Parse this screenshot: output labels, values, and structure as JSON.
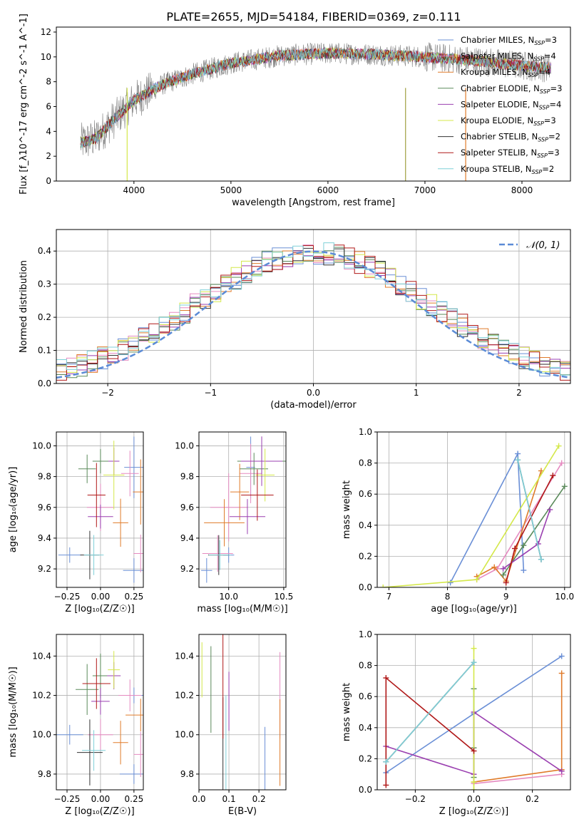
{
  "figure_title": "PLATE=2655, MJD=54184, FIBERID=0369, z=0.111",
  "colors": {
    "Chabrier MILES": "#6a8fd6",
    "Salpeter MILES": "#e58ac0",
    "Kroupa MILES": "#e07b2a",
    "Chabrier ELODIE": "#5a8a5a",
    "Salpeter ELODIE": "#9a3fb0",
    "Kroupa ELODIE": "#d4e84a",
    "Chabrier STELIB": "#333333",
    "Salpeter STELIB": "#b01818",
    "Kroupa STELIB": "#7fd0d8",
    "data": "#808080",
    "normal": "#5b8bd6"
  },
  "chart_data": [
    {
      "id": "spectrum",
      "type": "line",
      "xlabel": "wavelength [Angstrom, rest frame]",
      "ylabel": "Flux [f_λ10^-17 erg cm^-2 s^-1 A^-1]",
      "xlim": [
        3200,
        8500
      ],
      "ylim": [
        0,
        12.4
      ],
      "xticks": [
        4000,
        5000,
        6000,
        7000,
        8000
      ],
      "yticks": [
        0,
        2,
        4,
        6,
        8,
        10,
        12
      ],
      "legend_position": "lower right",
      "legend": [
        {
          "label": "Chabrier MILES, N",
          "sub": "SSP",
          "suffix": "=3"
        },
        {
          "label": "Salpeter MILES, N",
          "sub": "SSP",
          "suffix": "=4"
        },
        {
          "label": "Kroupa MILES, N",
          "sub": "SSP",
          "suffix": "=4"
        },
        {
          "label": "Chabrier ELODIE, N",
          "sub": "SSP",
          "suffix": "=3"
        },
        {
          "label": "Salpeter ELODIE, N",
          "sub": "SSP",
          "suffix": "=4"
        },
        {
          "label": "Kroupa ELODIE, N",
          "sub": "SSP",
          "suffix": "=3"
        },
        {
          "label": "Chabrier STELIB, N",
          "sub": "SSP",
          "suffix": "=2"
        },
        {
          "label": "Salpeter STELIB, N",
          "sub": "SSP",
          "suffix": "=3"
        },
        {
          "label": "Kroupa STELIB, N",
          "sub": "SSP",
          "suffix": "=2"
        }
      ],
      "data_trend": {
        "x": [
          3450,
          3600,
          3800,
          4000,
          4300,
          4600,
          5000,
          5500,
          6000,
          6500,
          7000,
          7500,
          8000,
          8300
        ],
        "y": [
          3.1,
          3.4,
          5.0,
          6.5,
          7.8,
          8.6,
          9.5,
          10.1,
          10.3,
          10.2,
          10.0,
          9.7,
          9.3,
          9.1
        ]
      },
      "data_range": [
        3450,
        8300
      ],
      "dropouts": [
        3930,
        6800,
        7420
      ]
    },
    {
      "id": "residuals",
      "type": "histogram",
      "xlabel": "(data-model)/error",
      "ylabel": "Normed distribution",
      "xlim": [
        -2.5,
        2.5
      ],
      "ylim": [
        0,
        0.465
      ],
      "xticks": [
        -2,
        -1,
        0,
        1,
        2
      ],
      "yticks": [
        0,
        0.1,
        0.2,
        0.3,
        0.4
      ],
      "legend_position": "upper right",
      "legend": "𝒩(0, 1)",
      "bin_width": 0.1,
      "bins_start": -2.5
    },
    {
      "id": "age-Z",
      "type": "errorbar",
      "xlabel": "Z [log₁₀(Z/Z☉)]",
      "ylabel": "age  [log₁₀(age/yr)]",
      "xlim": [
        -0.33,
        0.32
      ],
      "ylim": [
        9.08,
        10.09
      ],
      "xticks": [
        -0.25,
        0.0,
        0.25
      ],
      "yticks": [
        9.2,
        9.4,
        9.6,
        9.8,
        10.0
      ],
      "xtick_labels": [
        "−0.25",
        "0.00",
        "0.25"
      ]
    },
    {
      "id": "age-mass",
      "type": "errorbar",
      "xlabel": "mass [log₁₀(M/M☉)]",
      "ylabel": "",
      "xlim": [
        9.73,
        10.52
      ],
      "ylim": [
        9.08,
        10.09
      ],
      "xticks": [
        10.0,
        10.5
      ],
      "yticks": [
        9.2,
        9.4,
        9.6,
        9.8,
        10.0
      ]
    },
    {
      "id": "weight-age",
      "type": "line",
      "xlabel": "age  [log₁₀(age/yr)]",
      "ylabel": "mass weight",
      "xlim": [
        6.8,
        10.1
      ],
      "ylim": [
        0,
        1.0
      ],
      "xticks": [
        7,
        8,
        9,
        10
      ],
      "yticks": [
        0.0,
        0.2,
        0.4,
        0.6,
        0.8,
        1.0
      ]
    },
    {
      "id": "mass-Z",
      "type": "errorbar",
      "xlabel": "Z [log₁₀(Z/Z☉)]",
      "ylabel": "mass [log₁₀(M/M☉)]",
      "xlim": [
        -0.33,
        0.32
      ],
      "ylim": [
        9.72,
        10.51
      ],
      "xticks": [
        -0.25,
        0.0,
        0.25
      ],
      "yticks": [
        9.8,
        10.0,
        10.2,
        10.4
      ],
      "xtick_labels": [
        "−0.25",
        "0.00",
        "0.25"
      ]
    },
    {
      "id": "mass-EBV",
      "type": "errorbar",
      "xlabel": "E(B-V)",
      "ylabel": "",
      "xlim": [
        0.0,
        0.29
      ],
      "ylim": [
        9.72,
        10.51
      ],
      "xticks": [
        0.0,
        0.1,
        0.2
      ],
      "yticks": [
        9.8,
        10.0,
        10.2,
        10.4
      ]
    },
    {
      "id": "weight-Z",
      "type": "line",
      "xlabel": "Z [log₁₀(Z/Z☉)]",
      "ylabel": "mass weight",
      "xlim": [
        -0.33,
        0.33
      ],
      "ylim": [
        0,
        1.0
      ],
      "xticks": [
        -0.2,
        0.0,
        0.2
      ],
      "yticks": [
        0.0,
        0.2,
        0.4,
        0.6,
        0.8,
        1.0
      ],
      "xtick_labels": [
        "−0.2",
        "0.0",
        "0.2"
      ]
    }
  ],
  "models": [
    {
      "name": "Chabrier MILES",
      "Z": [
        0.25,
        -0.23,
        0.25
      ],
      "Zerr": [
        0.05,
        0.02,
        0.05
      ],
      "age": [
        9.19,
        9.29,
        9.86
      ],
      "ageErr": [
        0.08,
        0.05,
        0.2
      ],
      "mass": [
        9.8,
        10.0,
        10.2
      ],
      "massErr": [
        0.05,
        0.05,
        0.04
      ],
      "ebv": 0.22,
      "ebvErr": 0.24,
      "weights_age": [
        [
          8.05,
          0.03
        ],
        [
          9.2,
          0.86
        ],
        [
          9.3,
          0.11
        ]
      ],
      "weights_Z": [
        [
          -0.3,
          0.11
        ],
        [
          0.0,
          0.49
        ],
        [
          0.3,
          0.86
        ]
      ]
    },
    {
      "name": "Salpeter MILES",
      "Z": [
        0.22,
        0.0,
        0.3
      ],
      "age": [
        9.82,
        9.6,
        9.3
      ],
      "mass": [
        10.2,
        10.0,
        9.9
      ],
      "ebv": 0.27,
      "ebvErr": 0.22,
      "weights_age": [
        [
          8.5,
          0.05
        ],
        [
          8.85,
          0.12
        ],
        [
          9.95,
          0.8
        ]
      ],
      "weights_Z": [
        [
          0.0,
          0.04
        ],
        [
          0.3,
          0.1
        ]
      ]
    },
    {
      "name": "Kroupa MILES",
      "Z": [
        0.15,
        0.3
      ],
      "age": [
        9.5,
        9.7
      ],
      "mass": [
        9.96,
        10.1
      ],
      "ebv": 0.27,
      "ebvErr": 0.22,
      "weights_age": [
        [
          8.5,
          0.07
        ],
        [
          8.8,
          0.13
        ],
        [
          9.0,
          0.04
        ],
        [
          9.6,
          0.75
        ]
      ],
      "weights_Z": [
        [
          0.0,
          0.05
        ],
        [
          0.3,
          0.13
        ],
        [
          0.3,
          0.75
        ]
      ]
    },
    {
      "name": "Chabrier ELODIE",
      "Z": [
        -0.1,
        0.0
      ],
      "age": [
        9.85,
        9.9
      ],
      "mass": [
        10.23,
        10.3
      ],
      "ebv": 0.04,
      "ebvErr": 0.22,
      "weights_age": [
        [
          8.95,
          0.08
        ],
        [
          9.3,
          0.27
        ],
        [
          10.0,
          0.65
        ]
      ],
      "weights_Z": [
        [
          0.0,
          0.08
        ],
        [
          0.0,
          0.27
        ],
        [
          0.0,
          0.65
        ]
      ]
    },
    {
      "name": "Salpeter ELODIE",
      "Z": [
        0.0,
        0.1
      ],
      "age": [
        9.54,
        9.9
      ],
      "mass": [
        10.17,
        10.3
      ],
      "ebv": 0.1,
      "ebvErr": 0.15,
      "weights_age": [
        [
          8.95,
          0.12
        ],
        [
          9.55,
          0.28
        ],
        [
          9.75,
          0.5
        ]
      ],
      "weights_Z": [
        [
          -0.3,
          0.28
        ],
        [
          0.0,
          0.1
        ],
        [
          0.0,
          0.5
        ],
        [
          0.3,
          0.12
        ]
      ]
    },
    {
      "name": "Kroupa ELODIE",
      "Z": [
        0.1
      ],
      "age": [
        9.81
      ],
      "mass": [
        10.33
      ],
      "ebv": 0.01,
      "ebvErr": 0.14,
      "weights_age": [
        [
          6.9,
          0.0
        ],
        [
          8.5,
          0.05
        ],
        [
          9.9,
          0.91
        ]
      ],
      "weights_Z": [
        [
          0.0,
          0.0
        ],
        [
          0.0,
          0.05
        ],
        [
          0.0,
          0.91
        ]
      ]
    },
    {
      "name": "Chabrier STELIB",
      "Z": [
        -0.08
      ],
      "age": [
        9.29
      ],
      "mass": [
        9.91
      ],
      "ebv": 0.08,
      "ebvErr": 0.28,
      "weights_age": [
        [
          9.2,
          0.82
        ],
        [
          9.6,
          0.18
        ]
      ],
      "weights_Z": [
        [
          -0.3,
          0.18
        ],
        [
          0.0,
          0.82
        ]
      ]
    },
    {
      "name": "Salpeter STELIB",
      "Z": [
        -0.03
      ],
      "age": [
        9.68
      ],
      "mass": [
        10.26
      ],
      "ebv": 0.08,
      "ebvErr": 0.28,
      "weights_age": [
        [
          9.0,
          0.03
        ],
        [
          9.15,
          0.25
        ],
        [
          9.8,
          0.72
        ]
      ],
      "weights_Z": [
        [
          -0.3,
          0.03
        ],
        [
          -0.3,
          0.72
        ],
        [
          0.0,
          0.25
        ]
      ]
    },
    {
      "name": "Kroupa STELIB",
      "Z": [
        -0.05
      ],
      "age": [
        9.29
      ],
      "mass": [
        9.92
      ],
      "ebv": 0.09,
      "ebvErr": 0.28,
      "weights_age": [
        [
          9.2,
          0.82
        ],
        [
          9.6,
          0.18
        ]
      ],
      "weights_Z": [
        [
          -0.3,
          0.18
        ],
        [
          0.0,
          0.82
        ]
      ]
    }
  ]
}
